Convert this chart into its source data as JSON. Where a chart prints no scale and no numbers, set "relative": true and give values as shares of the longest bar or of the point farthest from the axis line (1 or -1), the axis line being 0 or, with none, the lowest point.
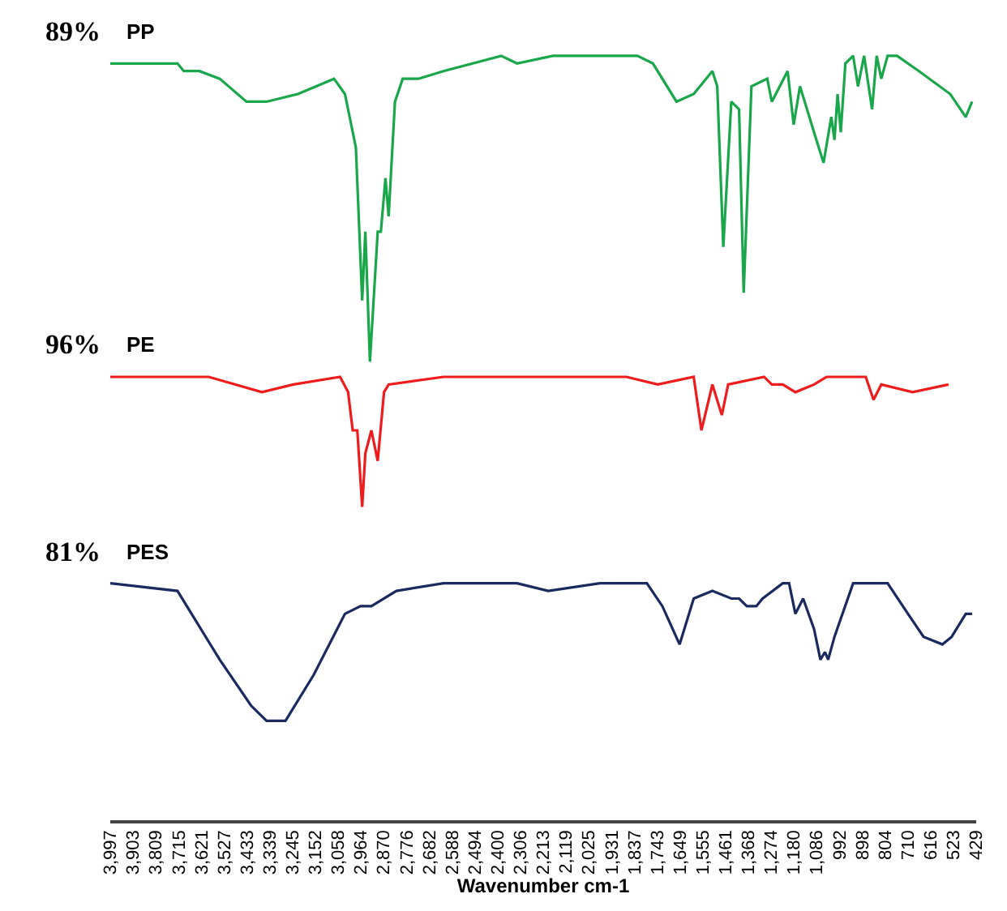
{
  "chart_data": {
    "type": "line",
    "relative": true,
    "xlabel": "Wavenumber cm-1",
    "annotations": [
      "89%",
      "96%",
      "81%"
    ],
    "xlim": [
      3997,
      429
    ],
    "xticks": [
      {
        "value": 3997,
        "label": "3,997"
      },
      {
        "value": 3903,
        "label": "3,903"
      },
      {
        "value": 3809,
        "label": "3,809"
      },
      {
        "value": 3715,
        "label": "3,715"
      },
      {
        "value": 3621,
        "label": "3,621"
      },
      {
        "value": 3527,
        "label": "3,527"
      },
      {
        "value": 3433,
        "label": "3,433"
      },
      {
        "value": 3339,
        "label": "3,339"
      },
      {
        "value": 3245,
        "label": "3,245"
      },
      {
        "value": 3152,
        "label": "3,152"
      },
      {
        "value": 3058,
        "label": "3,058"
      },
      {
        "value": 2964,
        "label": "2,964"
      },
      {
        "value": 2870,
        "label": "2,870"
      },
      {
        "value": 2776,
        "label": "2,776"
      },
      {
        "value": 2682,
        "label": "2,682"
      },
      {
        "value": 2588,
        "label": "2,588"
      },
      {
        "value": 2494,
        "label": "2,494"
      },
      {
        "value": 2400,
        "label": "2,400"
      },
      {
        "value": 2306,
        "label": "2,306"
      },
      {
        "value": 2213,
        "label": "2,213"
      },
      {
        "value": 2119,
        "label": "2,119"
      },
      {
        "value": 2025,
        "label": "2,025"
      },
      {
        "value": 1931,
        "label": "1,931"
      },
      {
        "value": 1837,
        "label": "1,837"
      },
      {
        "value": 1743,
        "label": "1,743"
      },
      {
        "value": 1649,
        "label": "1,649"
      },
      {
        "value": 1555,
        "label": "1,555"
      },
      {
        "value": 1461,
        "label": "1,461"
      },
      {
        "value": 1368,
        "label": "1,368"
      },
      {
        "value": 1274,
        "label": "1,274"
      },
      {
        "value": 1180,
        "label": "1,180"
      },
      {
        "value": 1086,
        "label": "1,086"
      },
      992,
      898,
      804,
      710,
      616,
      523,
      429
    ],
    "line_style": "solid",
    "series": [
      {
        "name": "PP",
        "color": "#1aa64a",
        "x": [
          3997,
          3720,
          3694,
          3630,
          3546,
          3436,
          3353,
          3224,
          3075,
          3030,
          2985,
          2959,
          2946,
          2927,
          2895,
          2882,
          2863,
          2850,
          2824,
          2792,
          2727,
          2624,
          2386,
          2321,
          2173,
          1825,
          1761,
          1664,
          1593,
          1516,
          1496,
          1471,
          1438,
          1406,
          1387,
          1355,
          1290,
          1271,
          1206,
          1181,
          1155,
          1097,
          1058,
          1026,
          1013,
          1000,
          987,
          968,
          936,
          916,
          891,
          858,
          839,
          820,
          794,
          755,
          665,
          536,
          472,
          446
        ],
        "values": [
          0.99,
          0.99,
          0.98,
          0.98,
          0.97,
          0.94,
          0.94,
          0.95,
          0.97,
          0.95,
          0.88,
          0.68,
          0.77,
          0.6,
          0.77,
          0.77,
          0.84,
          0.79,
          0.94,
          0.97,
          0.97,
          0.98,
          1.0,
          0.99,
          1.0,
          1.0,
          0.99,
          0.94,
          0.95,
          0.98,
          0.96,
          0.75,
          0.94,
          0.93,
          0.69,
          0.96,
          0.97,
          0.94,
          0.98,
          0.91,
          0.96,
          0.9,
          0.86,
          0.92,
          0.89,
          0.95,
          0.9,
          0.99,
          1.0,
          0.96,
          1.0,
          0.93,
          1.0,
          0.97,
          1.0,
          1.0,
          0.98,
          0.95,
          0.92,
          0.94
        ]
      },
      {
        "name": "PE",
        "color": "#ee1c1c",
        "x": [
          3997,
          3591,
          3372,
          3243,
          3050,
          3017,
          2998,
          2979,
          2959,
          2946,
          2921,
          2895,
          2869,
          2850,
          2624,
          2321,
          2083,
          1870,
          1741,
          1593,
          1561,
          1516,
          1477,
          1451,
          1303,
          1271,
          1226,
          1174,
          1097,
          1045,
          884,
          852,
          820,
          691,
          543
        ],
        "values": [
          0.58,
          0.58,
          0.56,
          0.57,
          0.58,
          0.56,
          0.51,
          0.51,
          0.41,
          0.48,
          0.51,
          0.47,
          0.56,
          0.57,
          0.58,
          0.58,
          0.58,
          0.58,
          0.57,
          0.58,
          0.51,
          0.57,
          0.53,
          0.57,
          0.58,
          0.57,
          0.57,
          0.56,
          0.57,
          0.58,
          0.58,
          0.55,
          0.57,
          0.56,
          0.57
        ]
      },
      {
        "name": "PES",
        "color": "#1b2a5e",
        "x": [
          3997,
          3720,
          3546,
          3417,
          3353,
          3275,
          3159,
          3030,
          2966,
          2921,
          2818,
          2624,
          2321,
          2192,
          1980,
          1786,
          1722,
          1651,
          1593,
          1516,
          1438,
          1406,
          1374,
          1335,
          1309,
          1226,
          1200,
          1174,
          1142,
          1097,
          1071,
          1052,
          1039,
          1013,
          936,
          852,
          794,
          710,
          646,
          568,
          530,
          472,
          446
        ],
        "values": [
          0.31,
          0.3,
          0.21,
          0.15,
          0.13,
          0.13,
          0.19,
          0.27,
          0.28,
          0.28,
          0.3,
          0.31,
          0.31,
          0.3,
          0.31,
          0.31,
          0.28,
          0.23,
          0.29,
          0.3,
          0.29,
          0.29,
          0.28,
          0.28,
          0.29,
          0.31,
          0.31,
          0.27,
          0.29,
          0.25,
          0.21,
          0.22,
          0.21,
          0.24,
          0.31,
          0.31,
          0.31,
          0.27,
          0.24,
          0.23,
          0.24,
          0.27,
          0.27
        ]
      }
    ]
  }
}
